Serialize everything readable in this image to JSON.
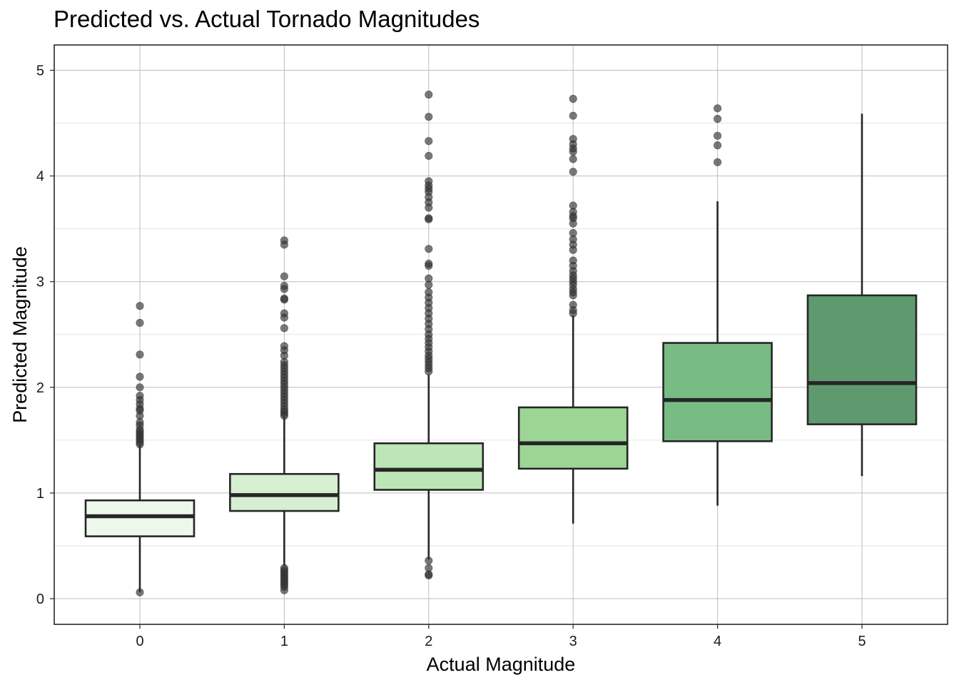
{
  "chart_data": {
    "type": "box",
    "title": "Predicted vs. Actual Tornado Magnitudes",
    "xlabel": "Actual Magnitude",
    "ylabel": "Predicted Magnitude",
    "categories": [
      "0",
      "1",
      "2",
      "3",
      "4",
      "5"
    ],
    "y_ticks": [
      "0",
      "1",
      "2",
      "3",
      "4",
      "5"
    ],
    "ylim": [
      -0.24,
      5.25
    ],
    "grid": true,
    "box_colors": [
      "#eef7ec",
      "#d6efd0",
      "#bde6b6",
      "#9dd596",
      "#78bc84",
      "#5f9a6e"
    ],
    "boxes": [
      {
        "category": "0",
        "q1": 0.59,
        "median": 0.78,
        "q3": 0.93,
        "whisker_low": 0.06,
        "whisker_high": 1.46,
        "outliers": [
          0.06,
          1.46,
          1.48,
          1.5,
          1.52,
          1.54,
          1.56,
          1.58,
          1.6,
          1.64,
          1.67,
          1.73,
          1.78,
          1.8,
          1.84,
          1.88,
          1.92,
          2.0,
          2.1,
          2.31,
          2.61,
          2.77
        ]
      },
      {
        "category": "1",
        "q1": 0.83,
        "median": 0.98,
        "q3": 1.18,
        "whisker_low": 0.31,
        "whisker_high": 1.72,
        "outliers": [
          0.08,
          0.11,
          0.13,
          0.15,
          0.17,
          0.19,
          0.21,
          0.23,
          0.25,
          0.27,
          0.29,
          1.73,
          1.75,
          1.77,
          1.79,
          1.82,
          1.85,
          1.88,
          1.91,
          1.94,
          1.97,
          2.0,
          2.03,
          2.06,
          2.09,
          2.12,
          2.15,
          2.18,
          2.21,
          2.24,
          2.3,
          2.35,
          2.39,
          2.56,
          2.66,
          2.7,
          2.83,
          2.84,
          2.93,
          2.96,
          3.05,
          3.35,
          3.39
        ]
      },
      {
        "category": "2",
        "q1": 1.03,
        "median": 1.22,
        "q3": 1.47,
        "whisker_low": 0.37,
        "whisker_high": 2.12,
        "outliers": [
          0.22,
          0.23,
          0.29,
          0.36,
          2.15,
          2.18,
          2.21,
          2.24,
          2.27,
          2.3,
          2.34,
          2.38,
          2.42,
          2.46,
          2.5,
          2.55,
          2.6,
          2.65,
          2.7,
          2.75,
          2.8,
          2.85,
          2.9,
          2.97,
          3.03,
          3.15,
          3.17,
          3.31,
          3.59,
          3.6,
          3.7,
          3.75,
          3.8,
          3.85,
          3.88,
          3.91,
          3.95,
          4.19,
          4.33,
          4.56,
          4.77
        ]
      },
      {
        "category": "3",
        "q1": 1.23,
        "median": 1.47,
        "q3": 1.81,
        "whisker_low": 0.71,
        "whisker_high": 2.68,
        "outliers": [
          2.7,
          2.73,
          2.78,
          2.87,
          2.9,
          2.93,
          2.97,
          3.0,
          3.03,
          3.06,
          3.1,
          3.15,
          3.2,
          3.3,
          3.35,
          3.4,
          3.46,
          3.55,
          3.6,
          3.62,
          3.66,
          3.72,
          4.04,
          4.16,
          4.23,
          4.26,
          4.3,
          4.35,
          4.57,
          4.73
        ]
      },
      {
        "category": "4",
        "q1": 1.49,
        "median": 1.88,
        "q3": 2.42,
        "whisker_low": 0.88,
        "whisker_high": 3.76,
        "outliers": [
          4.13,
          4.29,
          4.38,
          4.54,
          4.64
        ]
      },
      {
        "category": "5",
        "q1": 1.65,
        "median": 2.04,
        "q3": 2.87,
        "whisker_low": 1.16,
        "whisker_high": 4.59,
        "outliers": []
      }
    ]
  }
}
